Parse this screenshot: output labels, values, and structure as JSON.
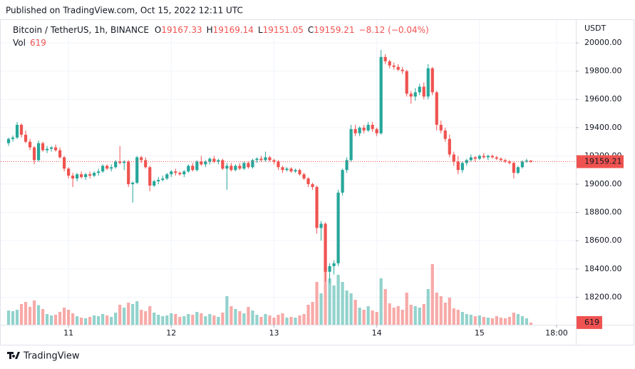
{
  "header": "Published on TradingView.com, Oct 15, 2022 12:11 UTC",
  "footer": "TradingView",
  "chart_data": {
    "type": "candlestick",
    "legend": {
      "symbol": "Bitcoin / TetherUS, 1h, BINANCE",
      "ohlc": [
        {
          "label": "O",
          "value": "19167.33"
        },
        {
          "label": "H",
          "value": "19169.14"
        },
        {
          "label": "L",
          "value": "19151.05"
        },
        {
          "label": "C",
          "value": "19159.21"
        }
      ],
      "change": "−8.12 (−0.04%)",
      "volume_label": "Vol",
      "volume_value": "619"
    },
    "currency": "USDT",
    "last_price_label": "19159.21",
    "last_volume_label": "619",
    "up_color": "#26a69a",
    "down_color": "#ef5350",
    "grid": true,
    "ylim": [
      18005,
      20167
    ],
    "yticks": [
      {
        "value": 18200,
        "label": "18200.00"
      },
      {
        "value": 18400,
        "label": "18400.00"
      },
      {
        "value": 18600,
        "label": "18600.00"
      },
      {
        "value": 18800,
        "label": "18800.00"
      },
      {
        "value": 19000,
        "label": "19000.00"
      },
      {
        "value": 19200,
        "label": "19200.00"
      },
      {
        "value": 19400,
        "label": "19400.00"
      },
      {
        "value": 19600,
        "label": "19600.00"
      },
      {
        "value": 19800,
        "label": "19800.00"
      },
      {
        "value": 20000,
        "label": "20000.00"
      }
    ],
    "volume_lim": [
      0,
      20000
    ],
    "xlim": [
      -2,
      132.5
    ],
    "xticks": [
      {
        "value": 14,
        "label": "11"
      },
      {
        "value": 38,
        "label": "12"
      },
      {
        "value": 62,
        "label": "13"
      },
      {
        "value": 86,
        "label": "14"
      },
      {
        "value": 110,
        "label": "15"
      },
      {
        "value": 128,
        "label": "18:00"
      }
    ],
    "candles": [
      [
        19290,
        19330,
        19270,
        19320,
        4000
      ],
      [
        19320,
        19345,
        19300,
        19330,
        3800
      ],
      [
        19330,
        19440,
        19320,
        19420,
        4200
      ],
      [
        19420,
        19430,
        19330,
        19350,
        5800
      ],
      [
        19350,
        19380,
        19290,
        19300,
        6400
      ],
      [
        19300,
        19320,
        19240,
        19260,
        5000
      ],
      [
        19260,
        19270,
        19140,
        19170,
        6800
      ],
      [
        19170,
        19310,
        19160,
        19290,
        5500
      ],
      [
        19290,
        19300,
        19230,
        19240,
        4400
      ],
      [
        19240,
        19270,
        19220,
        19250,
        3000
      ],
      [
        19250,
        19270,
        19230,
        19260,
        2600
      ],
      [
        19260,
        19280,
        19230,
        19240,
        2800
      ],
      [
        19240,
        19260,
        19180,
        19190,
        3600
      ],
      [
        19190,
        19200,
        19090,
        19110,
        4800
      ],
      [
        19110,
        19120,
        19040,
        19060,
        4200
      ],
      [
        19060,
        19080,
        18980,
        19040,
        3200
      ],
      [
        19040,
        19080,
        19020,
        19070,
        2400
      ],
      [
        19070,
        19090,
        19040,
        19050,
        2000
      ],
      [
        19050,
        19080,
        19030,
        19070,
        1800
      ],
      [
        19070,
        19090,
        19040,
        19060,
        2200
      ],
      [
        19060,
        19090,
        19050,
        19080,
        2600
      ],
      [
        19080,
        19110,
        19060,
        19090,
        2400
      ],
      [
        19090,
        19140,
        19080,
        19130,
        3000
      ],
      [
        19130,
        19140,
        19100,
        19110,
        2600
      ],
      [
        19110,
        19140,
        19090,
        19120,
        2200
      ],
      [
        19120,
        19170,
        19110,
        19160,
        3400
      ],
      [
        19160,
        19270,
        19140,
        19150,
        5600
      ],
      [
        19150,
        19170,
        19100,
        19160,
        4800
      ],
      [
        19160,
        19170,
        18980,
        19000,
        6200
      ],
      [
        19000,
        19020,
        18870,
        19010,
        5800
      ],
      [
        19010,
        19200,
        19000,
        19190,
        6600
      ],
      [
        19190,
        19200,
        19150,
        19170,
        4200
      ],
      [
        19170,
        19190,
        19110,
        19120,
        3800
      ],
      [
        19120,
        19130,
        18950,
        18990,
        5200
      ],
      [
        18990,
        19030,
        18980,
        19020,
        3400
      ],
      [
        19020,
        19050,
        19000,
        19030,
        2800
      ],
      [
        19030,
        19060,
        19020,
        19040,
        2400
      ],
      [
        19040,
        19080,
        19030,
        19070,
        2600
      ],
      [
        19070,
        19100,
        19050,
        19090,
        3200
      ],
      [
        19090,
        19110,
        19060,
        19080,
        3000
      ],
      [
        19080,
        19090,
        19060,
        19070,
        2200
      ],
      [
        19070,
        19100,
        19050,
        19090,
        2400
      ],
      [
        19090,
        19140,
        19080,
        19130,
        3000
      ],
      [
        19130,
        19150,
        19090,
        19100,
        2800
      ],
      [
        19100,
        19170,
        19090,
        19160,
        3600
      ],
      [
        19160,
        19200,
        19130,
        19140,
        3200
      ],
      [
        19140,
        19170,
        19120,
        19160,
        2400
      ],
      [
        19160,
        19190,
        19140,
        19180,
        3000
      ],
      [
        19180,
        19200,
        19150,
        19160,
        2600
      ],
      [
        19160,
        19180,
        19140,
        19170,
        2200
      ],
      [
        19170,
        19180,
        19100,
        19110,
        3400
      ],
      [
        19110,
        19150,
        18960,
        19130,
        8000
      ],
      [
        19130,
        19150,
        19090,
        19100,
        5200
      ],
      [
        19100,
        19140,
        19090,
        19130,
        4400
      ],
      [
        19130,
        19150,
        19100,
        19110,
        3800
      ],
      [
        19110,
        19160,
        19100,
        19150,
        3200
      ],
      [
        19150,
        19160,
        19110,
        19120,
        5000
      ],
      [
        19120,
        19180,
        19110,
        19170,
        4000
      ],
      [
        19170,
        19190,
        19150,
        19180,
        2800
      ],
      [
        19180,
        19200,
        19160,
        19170,
        2200
      ],
      [
        19170,
        19230,
        19160,
        19190,
        3000
      ],
      [
        19190,
        19200,
        19160,
        19170,
        2600
      ],
      [
        19170,
        19180,
        19140,
        19160,
        2000
      ],
      [
        19160,
        19170,
        19100,
        19120,
        2800
      ],
      [
        19120,
        19130,
        19080,
        19100,
        3200
      ],
      [
        19100,
        19120,
        19090,
        19110,
        2000
      ],
      [
        19110,
        19120,
        19080,
        19090,
        2200
      ],
      [
        19090,
        19110,
        19080,
        19100,
        2000
      ],
      [
        19100,
        19110,
        19060,
        19070,
        2600
      ],
      [
        19070,
        19080,
        19030,
        19040,
        3000
      ],
      [
        19040,
        19050,
        18980,
        19000,
        5600
      ],
      [
        19000,
        19010,
        18960,
        18980,
        6400
      ],
      [
        18980,
        18990,
        18650,
        18690,
        12000
      ],
      [
        18690,
        18740,
        18600,
        18720,
        8800
      ],
      [
        18720,
        18730,
        18310,
        18380,
        16000
      ],
      [
        18380,
        18440,
        18300,
        18420,
        13000
      ],
      [
        18420,
        18460,
        18360,
        18440,
        11000
      ],
      [
        18440,
        18960,
        18420,
        18940,
        14000
      ],
      [
        18940,
        19110,
        18920,
        19100,
        12000
      ],
      [
        19100,
        19190,
        19080,
        19170,
        9600
      ],
      [
        19170,
        19420,
        19160,
        19390,
        8800
      ],
      [
        19390,
        19420,
        19340,
        19360,
        7000
      ],
      [
        19360,
        19410,
        19340,
        19400,
        4800
      ],
      [
        19400,
        19420,
        19360,
        19380,
        4200
      ],
      [
        19380,
        19440,
        19370,
        19420,
        5200
      ],
      [
        19420,
        19440,
        19370,
        19390,
        4000
      ],
      [
        19390,
        19400,
        19340,
        19360,
        3600
      ],
      [
        19360,
        19950,
        19350,
        19900,
        13000
      ],
      [
        19900,
        19920,
        19850,
        19870,
        10000
      ],
      [
        19870,
        19880,
        19820,
        19840,
        6000
      ],
      [
        19840,
        19860,
        19810,
        19830,
        4800
      ],
      [
        19830,
        19850,
        19800,
        19810,
        5200
      ],
      [
        19810,
        19830,
        19780,
        19800,
        4200
      ],
      [
        19800,
        19810,
        19620,
        19640,
        9000
      ],
      [
        19640,
        19660,
        19570,
        19620,
        5600
      ],
      [
        19620,
        19680,
        19590,
        19650,
        5200
      ],
      [
        19650,
        19710,
        19630,
        19690,
        4800
      ],
      [
        19690,
        19720,
        19600,
        19620,
        5800
      ],
      [
        19620,
        19850,
        19600,
        19820,
        10000
      ],
      [
        19820,
        19830,
        19630,
        19650,
        17000
      ],
      [
        19650,
        19660,
        19380,
        19420,
        9000
      ],
      [
        19420,
        19450,
        19360,
        19380,
        8000
      ],
      [
        19380,
        19400,
        19300,
        19320,
        6200
      ],
      [
        19320,
        19350,
        19190,
        19210,
        7600
      ],
      [
        19210,
        19230,
        19130,
        19160,
        4600
      ],
      [
        19160,
        19200,
        19070,
        19100,
        4200
      ],
      [
        19100,
        19160,
        19080,
        19150,
        3600
      ],
      [
        19150,
        19180,
        19130,
        19170,
        3000
      ],
      [
        19170,
        19210,
        19160,
        19190,
        2800
      ],
      [
        19190,
        19200,
        19160,
        19180,
        2400
      ],
      [
        19180,
        19210,
        19170,
        19200,
        2600
      ],
      [
        19200,
        19220,
        19180,
        19190,
        2200
      ],
      [
        19190,
        19210,
        19170,
        19200,
        2000
      ],
      [
        19200,
        19210,
        19180,
        19190,
        1800
      ],
      [
        19190,
        19200,
        19170,
        19180,
        2400
      ],
      [
        19180,
        19190,
        19160,
        19170,
        2000
      ],
      [
        19170,
        19180,
        19150,
        19160,
        1800
      ],
      [
        19160,
        19170,
        19140,
        19150,
        2200
      ],
      [
        19150,
        19160,
        19040,
        19080,
        3400
      ],
      [
        19080,
        19130,
        19070,
        19120,
        3000
      ],
      [
        19120,
        19170,
        19110,
        19160,
        2400
      ],
      [
        19160,
        19180,
        19150,
        19167.33,
        1800
      ],
      [
        19167.33,
        19169.14,
        19151.05,
        19159.21,
        619
      ]
    ]
  }
}
